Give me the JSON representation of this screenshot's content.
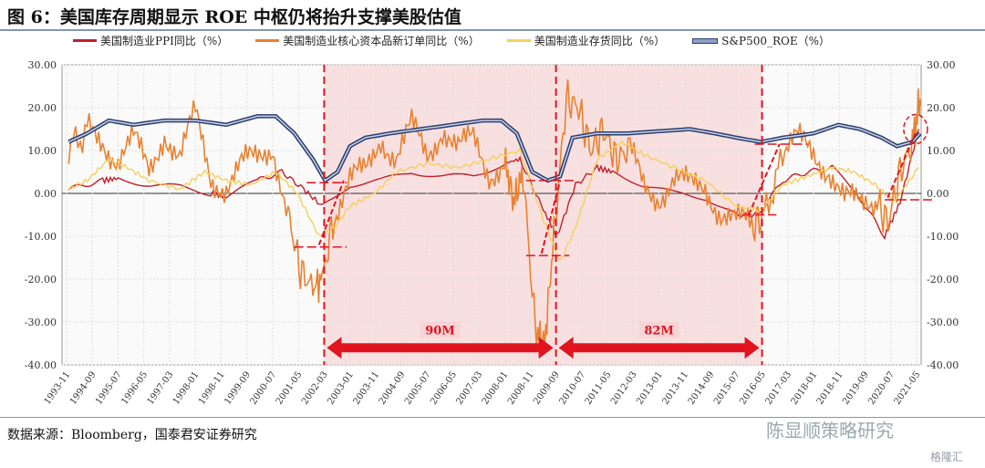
{
  "header": {
    "title": "图 6：美国库存周期显示 ROE 中枢仍将抬升支撑美股估值"
  },
  "footer": {
    "source": "数据来源：Bloomberg，国泰君安证券研究",
    "watermark": "陈显顺策略研究",
    "watermark2": "格隆汇"
  },
  "chart_data": {
    "type": "line",
    "title": "图 6：美国库存周期显示 ROE 中枢仍将抬升支撑美股估值",
    "ylim": [
      -40,
      30
    ],
    "y2lim": [
      -40,
      30
    ],
    "yticks": [
      "30.00",
      "20.00",
      "10.00",
      "0.00",
      "-10.00",
      "-20.00",
      "-30.00",
      "-40.00"
    ],
    "xticks": [
      "1993-11",
      "1994-09",
      "1995-07",
      "1996-05",
      "1997-03",
      "1998-01",
      "1998-11",
      "1999-09",
      "2000-07",
      "2001-05",
      "2002-03",
      "2003-01",
      "2003-11",
      "2004-09",
      "2005-07",
      "2006-05",
      "2007-03",
      "2008-01",
      "2008-11",
      "2009-09",
      "2010-07",
      "2011-05",
      "2012-03",
      "2013-01",
      "2013-11",
      "2014-09",
      "2015-07",
      "2016-05",
      "2017-03",
      "2018-01",
      "2018-11",
      "2019-09",
      "2020-07",
      "2021-05"
    ],
    "series": [
      {
        "name": "美国制造业PPI同比（%）",
        "color": "#c0202a",
        "x": [
          1993.9,
          1995,
          1995.5,
          1996.5,
          1997.5,
          1998.5,
          1999,
          2000,
          2000.8,
          2001.5,
          2002.1,
          2003,
          2004,
          2005,
          2006,
          2007,
          2008,
          2008.5,
          2009.2,
          2009.7,
          2010.3,
          2011,
          2011.5,
          2012.5,
          2013.5,
          2014.5,
          2015.5,
          2016.2,
          2017,
          2017.8,
          2018.6,
          2019.5,
          2020.3,
          2020.8,
          2021.4
        ],
        "y": [
          1,
          3,
          3.5,
          2,
          1.5,
          0,
          -1,
          3,
          5,
          1,
          -3,
          2,
          3,
          5,
          4,
          4,
          7,
          8,
          -3,
          -10,
          2,
          6,
          5,
          2,
          0,
          -1,
          -5,
          -5,
          3,
          5,
          6,
          -1,
          -10,
          -2,
          15
        ]
      },
      {
        "name": "美国制造业核心资本品新订单同比（%）",
        "color": "#e8822f",
        "x": [
          1993.9,
          1994.5,
          1995,
          1995.5,
          1996,
          1996.5,
          1997,
          1997.5,
          1998,
          1998.5,
          1999,
          1999.5,
          2000,
          2000.5,
          2001,
          2001.4,
          2001.8,
          2002.1,
          2002.5,
          2003,
          2003.5,
          2004,
          2004.5,
          2005,
          2005.5,
          2006,
          2006.5,
          2007,
          2007.5,
          2008,
          2008.3,
          2008.6,
          2009,
          2009.3,
          2009.6,
          2010,
          2010.4,
          2010.8,
          2011.2,
          2011.6,
          2012,
          2012.5,
          2013,
          2013.5,
          2014,
          2014.5,
          2015,
          2015.5,
          2016,
          2016.4,
          2017,
          2017.5,
          2018,
          2018.5,
          2019,
          2019.5,
          2020,
          2020.4,
          2020.8,
          2021.2,
          2021.45
        ],
        "y": [
          10,
          15,
          13,
          8,
          12,
          5,
          15,
          8,
          18,
          4,
          2,
          6,
          8,
          12,
          -5,
          -18,
          -22,
          -20,
          -5,
          2,
          5,
          14,
          8,
          15,
          9,
          16,
          10,
          12,
          5,
          8,
          -2,
          5,
          -32,
          -35,
          -10,
          22,
          20,
          10,
          15,
          8,
          10,
          2,
          0,
          3,
          1,
          2,
          -4,
          -7,
          -8,
          -5,
          8,
          12,
          10,
          6,
          -2,
          -3,
          -1,
          -7,
          5,
          12,
          22
        ]
      },
      {
        "name": "美国制造业存货同比（%）",
        "color": "#f5d05a",
        "x": [
          1993.9,
          1994.5,
          1995.2,
          1995.8,
          1996.5,
          1997.5,
          1998.3,
          1999,
          1999.8,
          2000.6,
          2001.3,
          2002,
          2002.5,
          2003,
          2003.8,
          2004.5,
          2005.5,
          2006.5,
          2007.5,
          2008.5,
          2009.2,
          2009.8,
          2010.3,
          2011,
          2011.8,
          2012.5,
          2013.5,
          2014.5,
          2015.5,
          2016.3,
          2017,
          2017.8,
          2018.6,
          2019.3,
          2020,
          2020.6,
          2021.4
        ],
        "y": [
          1,
          3,
          8,
          6,
          3,
          1,
          5,
          3,
          2,
          5,
          0,
          -10,
          -8,
          -3,
          0,
          5,
          7,
          6,
          8,
          10,
          -5,
          -16,
          -8,
          8,
          12,
          9,
          6,
          3,
          -3,
          -4,
          2,
          4,
          6,
          5,
          2,
          -2,
          6
        ]
      },
      {
        "name": "S&P500_ROE（%）",
        "color": "#2c3e6e",
        "x": [
          1993.9,
          1994.5,
          1995.2,
          1996,
          1997,
          1998,
          1999,
          2000,
          2000.6,
          2001.2,
          2001.8,
          2002.2,
          2002.6,
          2003,
          2003.5,
          2004.3,
          2005.3,
          2006.3,
          2007.3,
          2007.9,
          2008.4,
          2008.9,
          2009.4,
          2009.8,
          2010.2,
          2011,
          2012,
          2013,
          2014,
          2014.8,
          2015.5,
          2016.3,
          2017,
          2018,
          2018.8,
          2019.5,
          2020.2,
          2020.7,
          2021.2,
          2021.45
        ],
        "y": [
          12,
          14,
          17,
          16,
          17,
          17,
          16,
          18,
          18,
          14,
          8,
          3,
          5,
          11,
          13,
          14,
          15,
          16,
          17,
          17,
          14,
          5,
          3,
          4,
          13,
          14,
          14,
          14.5,
          15,
          14,
          13,
          12,
          13,
          14,
          16,
          15,
          13,
          11,
          12,
          14
        ]
      }
    ],
    "annotations": {
      "period1": "90M",
      "period2": "82M",
      "markers": [
        "2002-03",
        "2009-09",
        "2016-05"
      ]
    }
  }
}
